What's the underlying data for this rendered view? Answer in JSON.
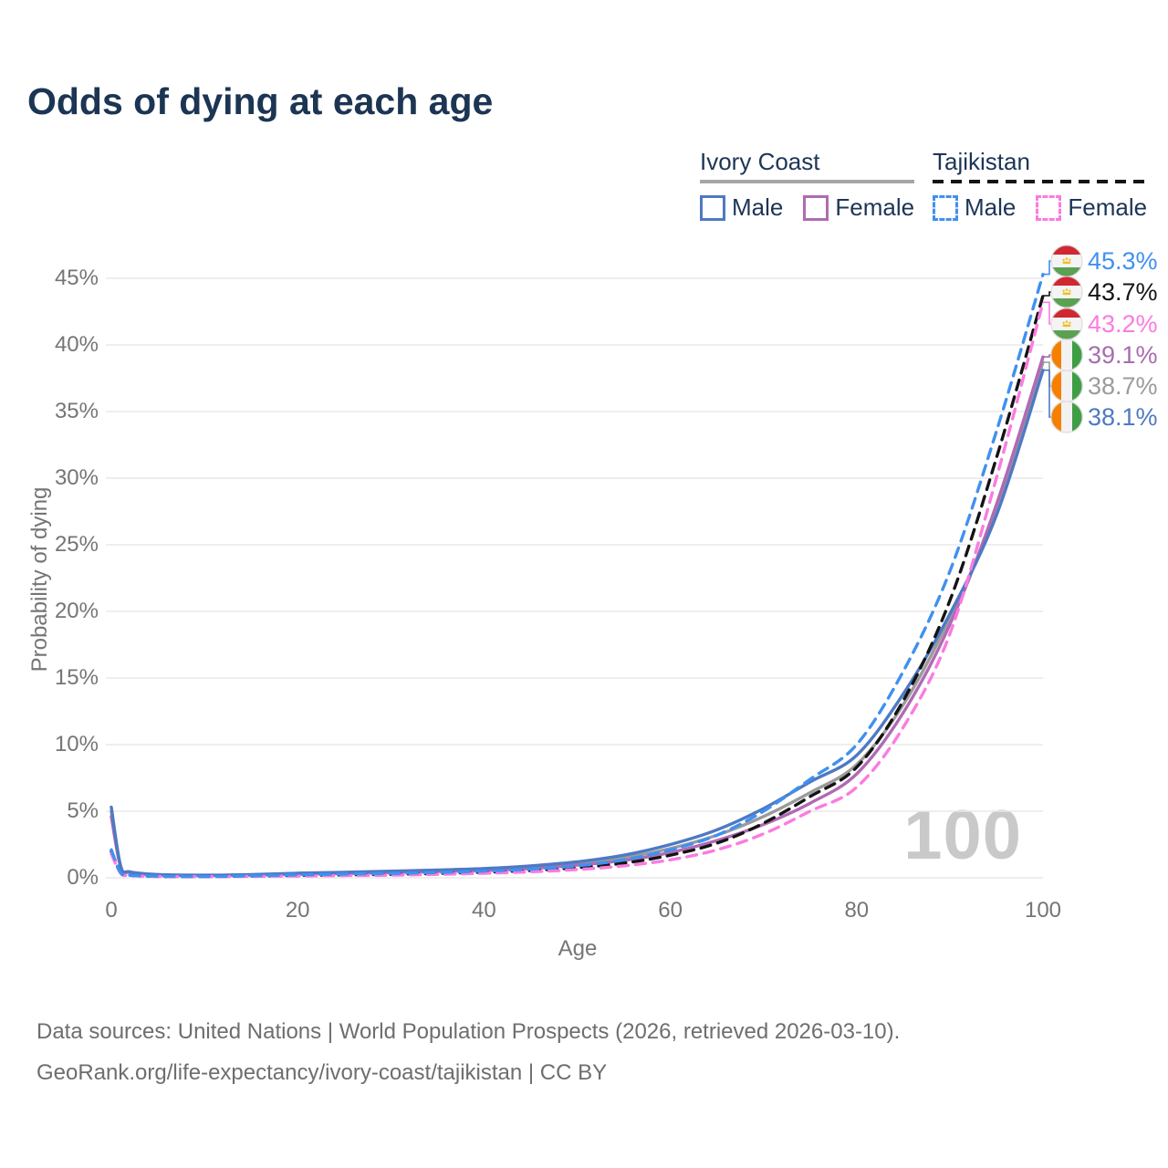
{
  "title": "Odds of dying at each age",
  "legend": {
    "groups": [
      {
        "name": "Ivory Coast",
        "underline_style": "solid",
        "underline_color": "#a6a6a6",
        "items": [
          {
            "label": "Male",
            "color": "#4e79c4",
            "dashed": false
          },
          {
            "label": "Female",
            "color": "#b06ab4",
            "dashed": false
          }
        ]
      },
      {
        "name": "Tajikistan",
        "underline_style": "dashed",
        "underline_color": "#141414",
        "items": [
          {
            "label": "Male",
            "color": "#4090f0",
            "dashed": true
          },
          {
            "label": "Female",
            "color": "#fb7be0",
            "dashed": true
          }
        ]
      }
    ]
  },
  "axes": {
    "y_title": "Probability of dying",
    "x_title": "Age",
    "y_ticks": [
      "0%",
      "5%",
      "10%",
      "15%",
      "20%",
      "25%",
      "30%",
      "35%",
      "40%",
      "45%"
    ],
    "y_tick_values": [
      0,
      5,
      10,
      15,
      20,
      25,
      30,
      35,
      40,
      45
    ],
    "x_ticks": [
      "0",
      "20",
      "40",
      "60",
      "80",
      "100"
    ],
    "x_tick_values": [
      0,
      20,
      40,
      60,
      80,
      100
    ]
  },
  "watermark": "100",
  "end_labels": [
    {
      "flag": "tajikistan",
      "value": "45.3%",
      "color": "#4090f0",
      "end_pct": 45.3
    },
    {
      "flag": "tajikistan",
      "value": "43.7%",
      "color": "#141414",
      "end_pct": 43.7
    },
    {
      "flag": "tajikistan",
      "value": "43.2%",
      "color": "#fb7be0",
      "end_pct": 43.2
    },
    {
      "flag": "ivory-coast",
      "value": "39.1%",
      "color": "#a86cb0",
      "end_pct": 39.1
    },
    {
      "flag": "ivory-coast",
      "value": "38.7%",
      "color": "#9b9b9b",
      "end_pct": 38.7
    },
    {
      "flag": "ivory-coast",
      "value": "38.1%",
      "color": "#4e79c4",
      "end_pct": 38.1
    }
  ],
  "footer": {
    "line1": "Data sources: United Nations | World Population Prospects (2026, retrieved 2026-03-10).",
    "line2": "GeoRank.org/life-expectancy/ivory-coast/tajikistan | CC BY"
  },
  "chart_data": {
    "type": "line",
    "title": "Odds of dying at each age",
    "xlabel": "Age",
    "ylabel": "Probability of dying",
    "xlim": [
      0,
      100
    ],
    "ylim": [
      0,
      47
    ],
    "grid": "horizontal",
    "legend_position": "top-right",
    "x": [
      0,
      1,
      2,
      5,
      10,
      15,
      20,
      25,
      30,
      35,
      40,
      45,
      50,
      55,
      60,
      65,
      70,
      75,
      80,
      85,
      90,
      95,
      100
    ],
    "series": [
      {
        "name": "Ivory Coast Average",
        "color": "#9b9b9b",
        "dashed": false,
        "values": [
          5.0,
          0.85,
          0.42,
          0.23,
          0.19,
          0.22,
          0.31,
          0.37,
          0.45,
          0.52,
          0.62,
          0.8,
          1.07,
          1.5,
          2.2,
          3.2,
          4.6,
          6.4,
          8.5,
          13.0,
          19.5,
          27.6,
          38.7
        ]
      },
      {
        "name": "Ivory Coast Female",
        "color": "#b06ab4",
        "dashed": false,
        "values": [
          4.6,
          0.8,
          0.4,
          0.22,
          0.18,
          0.2,
          0.28,
          0.33,
          0.4,
          0.47,
          0.55,
          0.7,
          0.95,
          1.3,
          1.9,
          2.8,
          4.0,
          5.6,
          7.8,
          12.4,
          19.0,
          28.0,
          39.1
        ]
      },
      {
        "name": "Ivory Coast Male",
        "color": "#4e79c4",
        "dashed": false,
        "values": [
          5.3,
          0.9,
          0.45,
          0.25,
          0.2,
          0.25,
          0.35,
          0.42,
          0.5,
          0.58,
          0.7,
          0.9,
          1.2,
          1.7,
          2.5,
          3.6,
          5.2,
          7.2,
          9.2,
          13.8,
          19.8,
          27.2,
          38.1
        ]
      },
      {
        "name": "Tajikistan Average",
        "color": "#141414",
        "dashed": true,
        "values": [
          2.0,
          0.38,
          0.19,
          0.11,
          0.1,
          0.13,
          0.18,
          0.22,
          0.26,
          0.33,
          0.42,
          0.55,
          0.76,
          1.1,
          1.7,
          2.6,
          4.1,
          6.1,
          8.3,
          13.3,
          20.8,
          31.5,
          43.7
        ]
      },
      {
        "name": "Tajikistan Female",
        "color": "#fb7be0",
        "dashed": true,
        "values": [
          1.8,
          0.35,
          0.18,
          0.1,
          0.09,
          0.11,
          0.14,
          0.17,
          0.2,
          0.26,
          0.34,
          0.45,
          0.62,
          0.9,
          1.35,
          2.1,
          3.3,
          5.0,
          6.8,
          11.3,
          18.3,
          30.0,
          43.2
        ]
      },
      {
        "name": "Tajikistan Male",
        "color": "#4090f0",
        "dashed": true,
        "values": [
          2.1,
          0.4,
          0.2,
          0.12,
          0.1,
          0.15,
          0.22,
          0.28,
          0.33,
          0.4,
          0.5,
          0.65,
          0.9,
          1.35,
          2.1,
          3.2,
          5.0,
          7.4,
          10.0,
          15.5,
          23.0,
          33.5,
          45.3
        ]
      }
    ]
  }
}
